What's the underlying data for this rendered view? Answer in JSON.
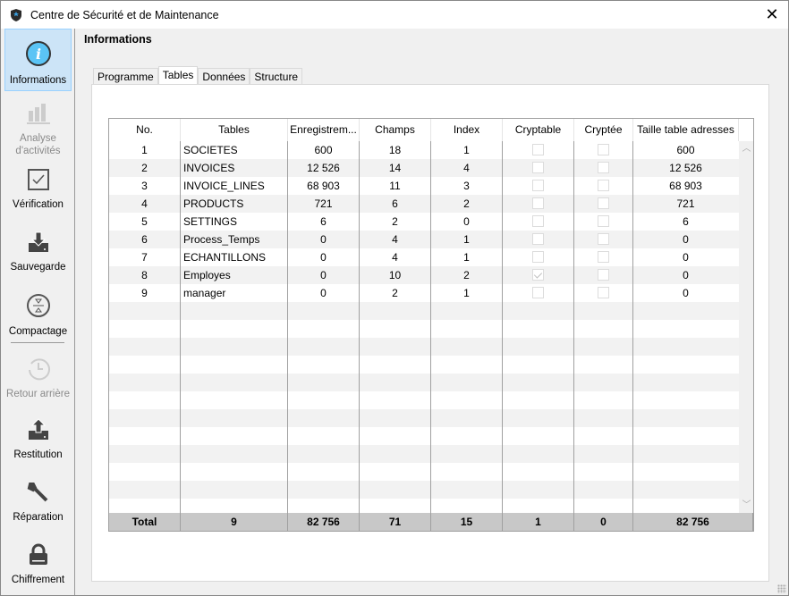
{
  "window": {
    "title": "Centre de Sécurité et de Maintenance",
    "close_icon": "close-icon"
  },
  "sidebar": {
    "items": [
      {
        "label": "Informations",
        "icon": "info-icon",
        "selected": true,
        "enabled": true
      },
      {
        "label": "Analyse d'activités",
        "icon": "bar-chart-icon",
        "enabled": false
      },
      {
        "label": "Vérification",
        "icon": "checkbox-check-icon",
        "enabled": true
      },
      {
        "label": "Sauvegarde",
        "icon": "drive-download-icon",
        "enabled": true
      },
      {
        "label": "Compactage",
        "icon": "compress-icon",
        "enabled": true
      },
      {
        "label": "Retour arrière",
        "icon": "history-icon",
        "enabled": false
      },
      {
        "label": "Restitution",
        "icon": "drive-upload-icon",
        "enabled": true
      },
      {
        "label": "Réparation",
        "icon": "wrench-icon",
        "enabled": true
      },
      {
        "label": "Chiffrement",
        "icon": "lock-icon",
        "enabled": true
      }
    ]
  },
  "main": {
    "heading": "Informations",
    "tabs": [
      {
        "label": "Programme"
      },
      {
        "label": "Tables",
        "active": true
      },
      {
        "label": "Données"
      },
      {
        "label": "Structure"
      }
    ],
    "table": {
      "columns": [
        "No.",
        "Tables",
        "Enregistrem...",
        "Champs",
        "Index",
        "Cryptable",
        "Cryptée",
        "Taille table adresses"
      ],
      "rows": [
        {
          "no": "1",
          "table": "SOCIETES",
          "records": "600",
          "fields": "18",
          "index": "1",
          "cryptable": false,
          "crypted": false,
          "size": "600"
        },
        {
          "no": "2",
          "table": "INVOICES",
          "records": "12 526",
          "fields": "14",
          "index": "4",
          "cryptable": false,
          "crypted": false,
          "size": "12 526"
        },
        {
          "no": "3",
          "table": "INVOICE_LINES",
          "records": "68 903",
          "fields": "11",
          "index": "3",
          "cryptable": false,
          "crypted": false,
          "size": "68 903"
        },
        {
          "no": "4",
          "table": "PRODUCTS",
          "records": "721",
          "fields": "6",
          "index": "2",
          "cryptable": false,
          "crypted": false,
          "size": "721"
        },
        {
          "no": "5",
          "table": "SETTINGS",
          "records": "6",
          "fields": "2",
          "index": "0",
          "cryptable": false,
          "crypted": false,
          "size": "6"
        },
        {
          "no": "6",
          "table": "Process_Temps",
          "records": "0",
          "fields": "4",
          "index": "1",
          "cryptable": false,
          "crypted": false,
          "size": "0"
        },
        {
          "no": "7",
          "table": "ECHANTILLONS",
          "records": "0",
          "fields": "4",
          "index": "1",
          "cryptable": false,
          "crypted": false,
          "size": "0"
        },
        {
          "no": "8",
          "table": "Employes",
          "records": "0",
          "fields": "10",
          "index": "2",
          "cryptable": true,
          "crypted": false,
          "size": "0"
        },
        {
          "no": "9",
          "table": "manager",
          "records": "0",
          "fields": "2",
          "index": "1",
          "cryptable": false,
          "crypted": false,
          "size": "0"
        }
      ],
      "total": {
        "label": "Total",
        "no": "9",
        "records": "82 756",
        "fields": "71",
        "index": "15",
        "cryptable": "1",
        "crypted": "0",
        "size": "82 756"
      }
    }
  }
}
